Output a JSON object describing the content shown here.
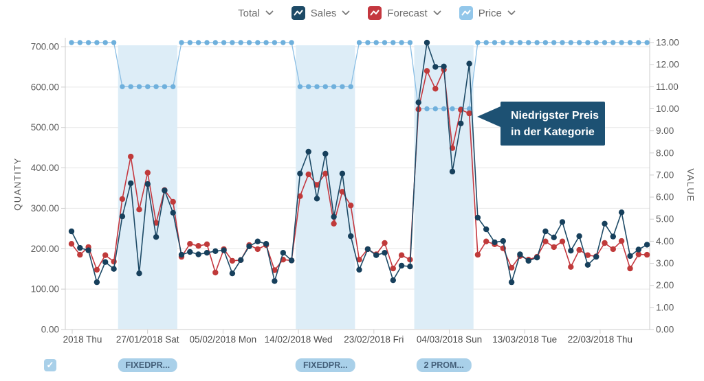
{
  "legend": {
    "items": [
      {
        "label": "Total",
        "swatch": null
      },
      {
        "label": "Sales",
        "swatch": "#1d4a66"
      },
      {
        "label": "Forecast",
        "swatch": "#c4373f"
      },
      {
        "label": "Price",
        "swatch": "#93c7ea"
      }
    ]
  },
  "annotation": {
    "line1": "Niedrigster Preis",
    "line2": "in der Kategorie",
    "bg_color": "#1d5173"
  },
  "promo_row": {
    "checkbox_checked": true,
    "checkmark": "✓"
  },
  "chart_data": {
    "type": "line",
    "title": "",
    "n_points": 69,
    "x_tick_labels": [
      "2018 Thu",
      "27/01/2018 Sat",
      "05/02/2018 Mon",
      "14/02/2018 Wed",
      "23/02/2018 Fri",
      "04/03/2018 Sun",
      "13/03/2018 Tue",
      "22/03/2018 Thu"
    ],
    "left_axis": {
      "label": "QUANTITY",
      "min": 0,
      "max": 700,
      "step": 100,
      "tick_format": "0.00"
    },
    "right_axis": {
      "label": "VALUE",
      "min": 0,
      "max": 13,
      "step": 1,
      "tick_format": "0.00"
    },
    "grid": true,
    "legend_position": "top",
    "series": [
      {
        "name": "Sales",
        "axis": "left",
        "color": "#1d4a66",
        "dot_color": "#17405c",
        "values": [
          243,
          202,
          196,
          117,
          167,
          150,
          280,
          362,
          139,
          360,
          229,
          344,
          289,
          185,
          192,
          186,
          190,
          194,
          196,
          139,
          172,
          206,
          218,
          212,
          120,
          190,
          171,
          386,
          440,
          324,
          435,
          279,
          386,
          231,
          148,
          199,
          184,
          190,
          122,
          158,
          156,
          562,
          710,
          650,
          651,
          391,
          510,
          658,
          277,
          248,
          216,
          219,
          117,
          186,
          170,
          178,
          243,
          228,
          266,
          195,
          231,
          160,
          180,
          262,
          230,
          290,
          182,
          198,
          210
        ]
      },
      {
        "name": "Forecast",
        "axis": "left",
        "color": "#c4373f",
        "dot_color": "#c03a3a",
        "values": [
          212,
          185,
          204,
          148,
          184,
          168,
          323,
          428,
          297,
          388,
          264,
          345,
          316,
          180,
          212,
          207,
          211,
          141,
          199,
          170,
          172,
          209,
          199,
          209,
          147,
          173,
          171,
          330,
          384,
          358,
          386,
          262,
          341,
          307,
          173,
          199,
          186,
          214,
          151,
          184,
          173,
          545,
          640,
          596,
          643,
          449,
          544,
          535,
          185,
          218,
          211,
          201,
          153,
          182,
          173,
          180,
          218,
          204,
          218,
          155,
          197,
          184,
          181,
          214,
          199,
          219,
          151,
          186,
          185
        ]
      },
      {
        "name": "Price",
        "axis": "right",
        "color": "#8abee4",
        "dot_color": "#6fb0dc",
        "values": [
          13,
          13,
          13,
          13,
          13,
          13,
          11,
          11,
          11,
          11,
          11,
          11,
          11,
          13,
          13,
          13,
          13,
          13,
          13,
          13,
          13,
          13,
          13,
          13,
          13,
          13,
          13,
          11,
          11,
          11,
          11,
          11,
          11,
          11,
          13,
          13,
          13,
          13,
          13,
          13,
          13,
          10,
          10,
          10,
          10,
          10,
          10,
          10,
          13,
          13,
          13,
          13,
          13,
          13,
          13,
          13,
          13,
          13,
          13,
          13,
          13,
          13,
          13,
          13,
          13,
          13,
          13,
          13,
          13
        ]
      }
    ],
    "promo_regions": [
      {
        "label": "FIXEDPR...",
        "start_index": 6,
        "end_index": 12,
        "price": 11
      },
      {
        "label": "FIXEDPR...",
        "start_index": 27,
        "end_index": 33,
        "price": 11
      },
      {
        "label": "2 PROM...",
        "start_index": 41,
        "end_index": 47,
        "price": 10
      }
    ],
    "shading_color": "#ddedf7"
  }
}
